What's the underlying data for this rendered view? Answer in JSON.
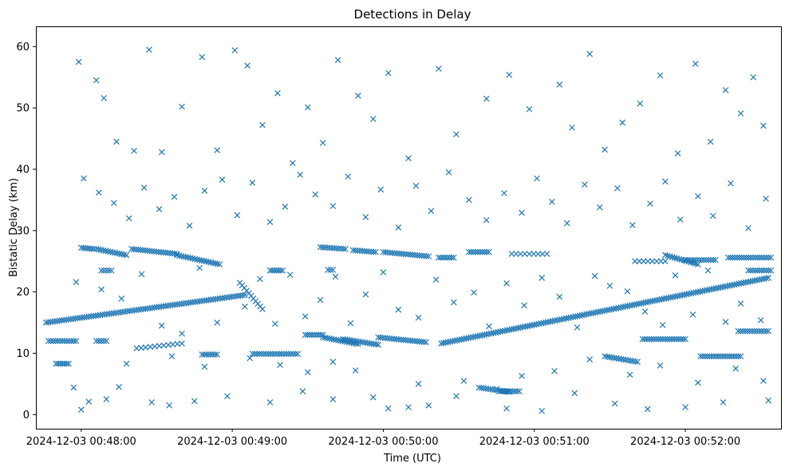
{
  "chart_data": {
    "type": "scatter",
    "title": "Detections in Delay",
    "xlabel": "Time (UTC)",
    "ylabel": "Bistatic Delay (km)",
    "marker": "x",
    "color": "#1f77b4",
    "x_unit": "seconds after 2024-12-03 00:47:00 UTC",
    "xlim": [
      42,
      338
    ],
    "ylim": [
      -2.3,
      63.3
    ],
    "x_ticks": [
      {
        "value": 60,
        "label": "2024-12-03 00:48:00"
      },
      {
        "value": 120,
        "label": "2024-12-03 00:49:00"
      },
      {
        "value": 180,
        "label": "2024-12-03 00:50:00"
      },
      {
        "value": 240,
        "label": "2024-12-03 00:51:00"
      },
      {
        "value": 300,
        "label": "2024-12-03 00:52:00"
      }
    ],
    "y_ticks": [
      {
        "value": 0,
        "label": "0"
      },
      {
        "value": 10,
        "label": "10"
      },
      {
        "value": 20,
        "label": "20"
      },
      {
        "value": 30,
        "label": "30"
      },
      {
        "value": 40,
        "label": "40"
      },
      {
        "value": 50,
        "label": "50"
      },
      {
        "value": 60,
        "label": "60"
      }
    ],
    "grid": false,
    "legend": "none",
    "series": [
      {
        "points": [
          [
            60,
            0.8
          ],
          [
            63,
            2.1
          ],
          [
            70,
            2.5
          ],
          [
            75,
            4.5
          ],
          [
            88,
            2.0
          ],
          [
            95,
            1.5
          ],
          [
            105,
            2.2
          ],
          [
            118,
            3.0
          ],
          [
            135,
            2.0
          ],
          [
            148,
            3.8
          ],
          [
            160,
            2.5
          ],
          [
            176,
            2.8
          ],
          [
            182,
            1.0
          ],
          [
            190,
            1.2
          ],
          [
            198,
            1.5
          ],
          [
            209,
            3.0
          ],
          [
            229,
            1.0
          ],
          [
            243,
            0.6
          ],
          [
            256,
            3.5
          ],
          [
            272,
            1.8
          ],
          [
            285,
            0.9
          ],
          [
            300,
            1.2
          ],
          [
            315,
            2.0
          ],
          [
            333,
            2.3
          ],
          [
            57,
            4.4
          ],
          [
            78,
            8.3
          ],
          [
            96,
            9.5
          ],
          [
            109,
            7.8
          ],
          [
            127,
            9.2
          ],
          [
            139,
            8.1
          ],
          [
            150,
            6.9
          ],
          [
            160,
            8.6
          ],
          [
            169,
            7.2
          ],
          [
            194,
            5.0
          ],
          [
            212,
            5.5
          ],
          [
            225,
            4.2
          ],
          [
            235,
            6.3
          ],
          [
            248,
            7.1
          ],
          [
            262,
            9.0
          ],
          [
            278,
            6.5
          ],
          [
            290,
            8.0
          ],
          [
            305,
            5.2
          ],
          [
            320,
            7.5
          ],
          [
            331,
            5.5
          ],
          [
            59,
            57.5
          ],
          [
            66,
            54.5
          ],
          [
            69,
            51.6
          ],
          [
            74,
            44.5
          ],
          [
            81,
            43.0
          ],
          [
            87,
            59.5
          ],
          [
            92,
            42.8
          ],
          [
            100,
            50.2
          ],
          [
            108,
            58.3
          ],
          [
            114,
            43.1
          ],
          [
            121,
            59.4
          ],
          [
            126,
            56.9
          ],
          [
            132,
            47.2
          ],
          [
            138,
            52.4
          ],
          [
            144,
            41.0
          ],
          [
            150,
            50.1
          ],
          [
            156,
            44.3
          ],
          [
            162,
            57.8
          ],
          [
            170,
            52.0
          ],
          [
            176,
            48.2
          ],
          [
            182,
            55.7
          ],
          [
            190,
            41.8
          ],
          [
            202,
            56.4
          ],
          [
            209,
            45.7
          ],
          [
            221,
            51.5
          ],
          [
            230,
            55.4
          ],
          [
            238,
            49.8
          ],
          [
            250,
            53.8
          ],
          [
            255,
            46.8
          ],
          [
            262,
            58.8
          ],
          [
            268,
            43.2
          ],
          [
            275,
            47.6
          ],
          [
            282,
            50.7
          ],
          [
            290,
            55.3
          ],
          [
            297,
            42.6
          ],
          [
            304,
            57.2
          ],
          [
            310,
            44.5
          ],
          [
            316,
            52.9
          ],
          [
            322,
            49.1
          ],
          [
            327,
            55.0
          ],
          [
            331,
            47.1
          ],
          [
            61,
            38.5
          ],
          [
            67,
            36.2
          ],
          [
            73,
            34.5
          ],
          [
            79,
            32.0
          ],
          [
            85,
            37.0
          ],
          [
            91,
            33.5
          ],
          [
            97,
            35.5
          ],
          [
            103,
            30.8
          ],
          [
            109,
            36.5
          ],
          [
            116,
            38.3
          ],
          [
            122,
            32.5
          ],
          [
            128,
            37.8
          ],
          [
            135,
            31.4
          ],
          [
            141,
            33.9
          ],
          [
            147,
            39.1
          ],
          [
            153,
            35.9
          ],
          [
            160,
            34.0
          ],
          [
            166,
            38.8
          ],
          [
            173,
            32.2
          ],
          [
            179,
            36.7
          ],
          [
            186,
            30.5
          ],
          [
            193,
            37.3
          ],
          [
            199,
            33.2
          ],
          [
            206,
            39.5
          ],
          [
            214,
            35.0
          ],
          [
            221,
            31.7
          ],
          [
            228,
            36.1
          ],
          [
            235,
            32.9
          ],
          [
            241,
            38.5
          ],
          [
            247,
            34.7
          ],
          [
            253,
            31.2
          ],
          [
            260,
            37.5
          ],
          [
            266,
            33.8
          ],
          [
            273,
            36.9
          ],
          [
            279,
            30.9
          ],
          [
            286,
            34.4
          ],
          [
            292,
            38.0
          ],
          [
            298,
            31.8
          ],
          [
            305,
            35.6
          ],
          [
            311,
            32.4
          ],
          [
            318,
            37.7
          ],
          [
            325,
            30.4
          ],
          [
            332,
            35.2
          ],
          [
            58,
            21.6
          ],
          [
            68,
            20.4
          ],
          [
            76,
            18.9
          ],
          [
            84,
            22.9
          ],
          [
            92,
            14.5
          ],
          [
            100,
            13.2
          ],
          [
            107,
            23.9
          ],
          [
            114,
            15.0
          ],
          [
            125,
            17.6
          ],
          [
            131,
            22.1
          ],
          [
            137,
            14.8
          ],
          [
            143,
            22.8
          ],
          [
            149,
            16.0
          ],
          [
            155,
            18.7
          ],
          [
            161,
            22.5
          ],
          [
            167,
            14.9
          ],
          [
            173,
            19.6
          ],
          [
            180,
            23.2
          ],
          [
            186,
            17.1
          ],
          [
            194,
            15.8
          ],
          [
            201,
            22.0
          ],
          [
            208,
            18.3
          ],
          [
            216,
            19.9
          ],
          [
            222,
            14.4
          ],
          [
            229,
            21.4
          ],
          [
            236,
            17.8
          ],
          [
            243,
            22.3
          ],
          [
            250,
            19.2
          ],
          [
            257,
            14.2
          ],
          [
            264,
            22.6
          ],
          [
            270,
            21.0
          ],
          [
            277,
            20.1
          ],
          [
            284,
            16.8
          ],
          [
            291,
            14.6
          ],
          [
            296,
            22.7
          ],
          [
            303,
            16.3
          ],
          [
            309,
            23.5
          ],
          [
            316,
            15.1
          ],
          [
            322,
            18.1
          ],
          [
            330,
            15.4
          ]
        ]
      }
    ],
    "tracks": [
      {
        "x": [
          46,
          125
        ],
        "y": [
          15.0,
          19.5
        ],
        "step": 0.9
      },
      {
        "x": [
          123,
          132
        ],
        "y": [
          21.5,
          17.2
        ],
        "step": 0.9
      },
      {
        "x": [
          164,
          178
        ],
        "y": [
          12.3,
          11.4
        ],
        "step": 0.9
      },
      {
        "x": [
          178,
          197
        ],
        "y": [
          12.6,
          11.8
        ],
        "step": 0.9
      },
      {
        "x": [
          203,
          333
        ],
        "y": [
          11.6,
          22.3
        ],
        "step": 0.9
      },
      {
        "x": [
          47,
          58
        ],
        "y": [
          12.0,
          12.0
        ],
        "step": 0.9
      },
      {
        "x": [
          50,
          55
        ],
        "y": [
          8.3,
          8.3
        ],
        "step": 0.9
      },
      {
        "x": [
          66,
          70
        ],
        "y": [
          12.0,
          12.0
        ],
        "step": 0.9
      },
      {
        "x": [
          82,
          100
        ],
        "y": [
          10.8,
          11.6
        ],
        "step": 1.8
      },
      {
        "x": [
          108,
          114
        ],
        "y": [
          9.8,
          9.8
        ],
        "step": 0.9
      },
      {
        "x": [
          128,
          146
        ],
        "y": [
          9.9,
          9.9
        ],
        "step": 0.9
      },
      {
        "x": [
          149,
          156
        ],
        "y": [
          13.0,
          13.0
        ],
        "step": 0.9
      },
      {
        "x": [
          156,
          170
        ],
        "y": [
          12.6,
          11.5
        ],
        "step": 0.9
      },
      {
        "x": [
          218,
          230
        ],
        "y": [
          4.4,
          3.7
        ],
        "step": 0.9
      },
      {
        "x": [
          226,
          234
        ],
        "y": [
          3.8,
          3.8
        ],
        "step": 0.9
      },
      {
        "x": [
          268,
          281
        ],
        "y": [
          9.5,
          8.6
        ],
        "step": 0.9
      },
      {
        "x": [
          283,
          300
        ],
        "y": [
          12.3,
          12.3
        ],
        "step": 0.9
      },
      {
        "x": [
          306,
          322
        ],
        "y": [
          9.5,
          9.5
        ],
        "step": 0.9
      },
      {
        "x": [
          321,
          333
        ],
        "y": [
          13.6,
          13.6
        ],
        "step": 0.9
      },
      {
        "x": [
          60,
          65
        ],
        "y": [
          27.2,
          27.0
        ],
        "step": 0.9
      },
      {
        "x": [
          66,
          78
        ],
        "y": [
          27.0,
          26.0
        ],
        "step": 0.9
      },
      {
        "x": [
          68,
          72
        ],
        "y": [
          23.5,
          23.5
        ],
        "step": 0.9
      },
      {
        "x": [
          80,
          98
        ],
        "y": [
          27.0,
          26.2
        ],
        "step": 0.9
      },
      {
        "x": [
          98,
          115
        ],
        "y": [
          26.0,
          24.5
        ],
        "step": 0.9
      },
      {
        "x": [
          135,
          140
        ],
        "y": [
          23.5,
          23.5
        ],
        "step": 0.9
      },
      {
        "x": [
          158,
          160
        ],
        "y": [
          23.6,
          23.6
        ],
        "step": 0.9
      },
      {
        "x": [
          155,
          165
        ],
        "y": [
          27.3,
          27.0
        ],
        "step": 0.9
      },
      {
        "x": [
          168,
          177
        ],
        "y": [
          26.8,
          26.5
        ],
        "step": 0.9
      },
      {
        "x": [
          180,
          198
        ],
        "y": [
          26.5,
          25.8
        ],
        "step": 0.9
      },
      {
        "x": [
          202,
          208
        ],
        "y": [
          25.6,
          25.6
        ],
        "step": 0.9
      },
      {
        "x": [
          214,
          222
        ],
        "y": [
          26.5,
          26.5
        ],
        "step": 0.9
      },
      {
        "x": [
          231,
          245
        ],
        "y": [
          26.2,
          26.2
        ],
        "step": 1.8
      },
      {
        "x": [
          280,
          292
        ],
        "y": [
          25.0,
          25.0
        ],
        "step": 1.8
      },
      {
        "x": [
          292,
          305
        ],
        "y": [
          26.0,
          24.5
        ],
        "step": 0.9
      },
      {
        "x": [
          300,
          312
        ],
        "y": [
          25.2,
          25.2
        ],
        "step": 0.9
      },
      {
        "x": [
          317,
          334
        ],
        "y": [
          25.6,
          25.6
        ],
        "step": 0.9
      },
      {
        "x": [
          325,
          334
        ],
        "y": [
          23.5,
          23.5
        ],
        "step": 0.9
      }
    ]
  }
}
